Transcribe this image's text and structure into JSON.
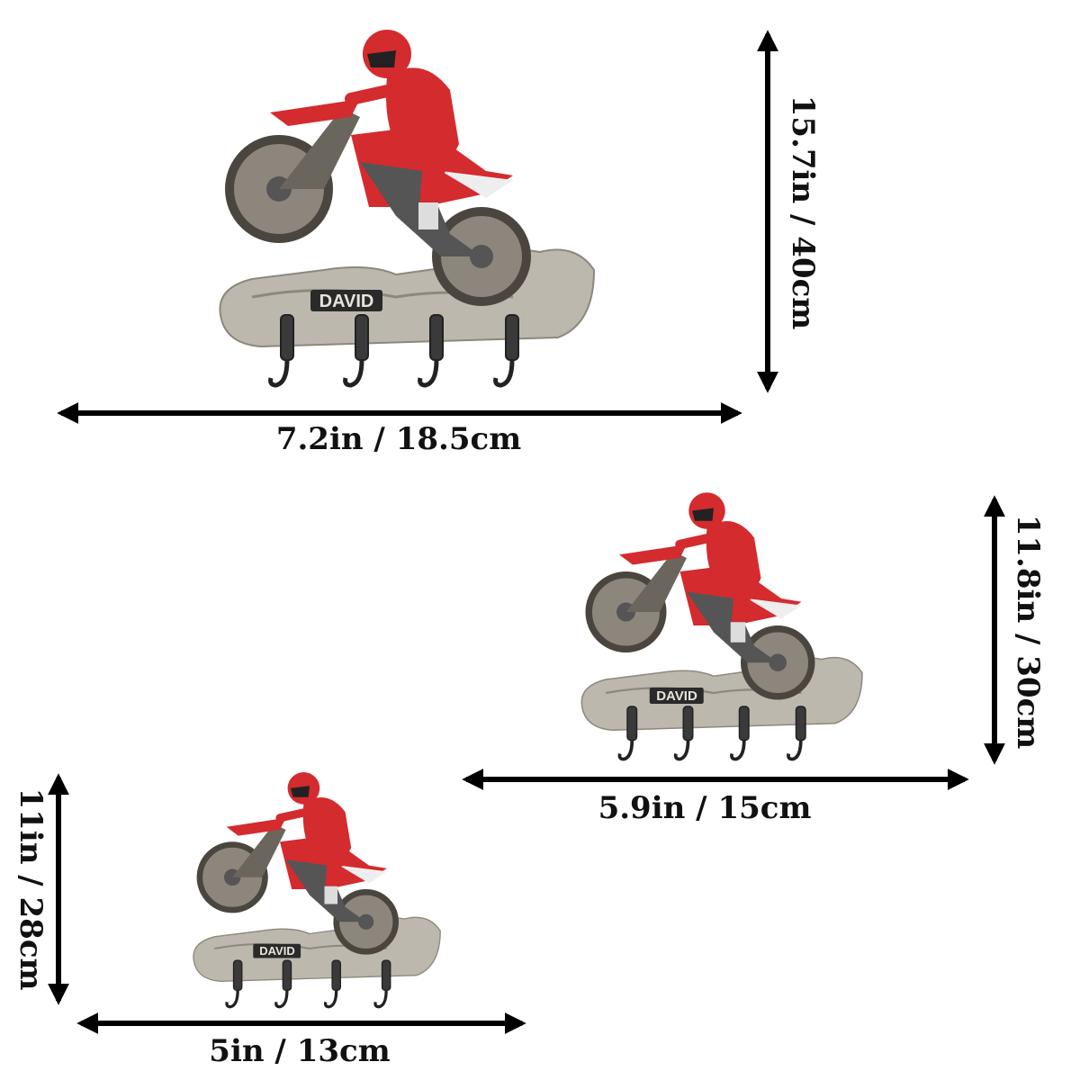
{
  "products": [
    {
      "size": "large",
      "name_plate": "DAVID",
      "height_label": "15.7in / 40cm",
      "width_label": "7.2in / 18.5cm",
      "hooks": 4
    },
    {
      "size": "medium",
      "name_plate": "DAVID",
      "height_label": "11.8in / 30cm",
      "width_label": "5.9in / 15cm",
      "hooks": 4
    },
    {
      "size": "small",
      "name_plate": "DAVID",
      "height_label": "11in / 28cm",
      "width_label": "5in / 13cm",
      "hooks": 4
    }
  ],
  "colors": {
    "rider_red": "#d42b2f",
    "rock": "#b9b4ab",
    "arrow": "#000000",
    "hook": "#3a3a3a"
  }
}
